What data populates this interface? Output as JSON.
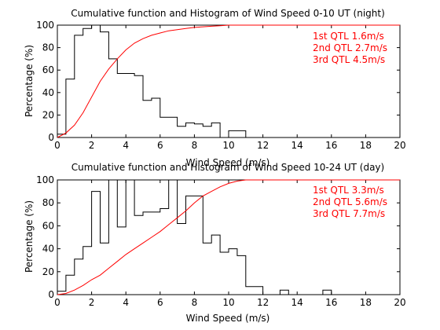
{
  "chart_data": [
    {
      "type": "line",
      "title": "Cumulative function and Histogram of Wind Speed 0-10 UT (night)",
      "xlabel": "Wind Speed (m/s)",
      "ylabel": "Percentage (%)",
      "xlim": [
        0,
        20
      ],
      "ylim": [
        0,
        100
      ],
      "xticks": [
        "0",
        "2",
        "4",
        "6",
        "8",
        "10",
        "12",
        "14",
        "16",
        "18",
        "20"
      ],
      "yticks": [
        "0",
        "20",
        "40",
        "60",
        "80",
        "100"
      ],
      "grid": false,
      "colors": {
        "histogram": "#000000",
        "cumulative": "#ff0000"
      },
      "annotations": [
        "1st QTL 1.6m/s",
        "2nd QTL 2.7m/s",
        "3rd QTL 4.5m/s"
      ],
      "series": [
        {
          "kind": "stairs",
          "x": [
            0,
            0.5,
            1,
            1.5,
            2,
            2.5,
            3,
            3.5,
            4,
            4.5,
            5,
            5.5,
            6,
            6.5,
            7,
            7.5,
            8,
            8.5,
            9,
            9.5,
            10,
            10.5,
            11,
            11.5,
            20
          ],
          "y": [
            3,
            52,
            91,
            97,
            100,
            94,
            70,
            57,
            57,
            55,
            33,
            35,
            18,
            18,
            10,
            13,
            12,
            10,
            13,
            0,
            6,
            6,
            0,
            0,
            0
          ]
        },
        {
          "kind": "line",
          "x": [
            0,
            0.5,
            1,
            1.5,
            2,
            2.5,
            3,
            3.5,
            4,
            4.5,
            5,
            5.5,
            6,
            6.5,
            7,
            7.5,
            8,
            8.5,
            9,
            9.5,
            10,
            10.5,
            11,
            20
          ],
          "y": [
            0,
            4,
            11,
            22,
            36,
            50,
            61,
            70,
            78,
            84,
            88,
            91,
            93,
            95,
            96,
            97,
            98,
            98.5,
            99,
            99.5,
            100,
            100,
            100,
            100
          ]
        }
      ]
    },
    {
      "type": "line",
      "title": "Cumulative function and Histogram of Wind Speed 10-24 UT (day)",
      "xlabel": "Wind Speed (m/s)",
      "ylabel": "Percentage (%)",
      "xlim": [
        0,
        20
      ],
      "ylim": [
        0,
        100
      ],
      "xticks": [
        "0",
        "2",
        "4",
        "6",
        "8",
        "10",
        "12",
        "14",
        "16",
        "18",
        "20"
      ],
      "yticks": [
        "0",
        "20",
        "40",
        "60",
        "80",
        "100"
      ],
      "grid": false,
      "colors": {
        "histogram": "#000000",
        "cumulative": "#ff0000"
      },
      "annotations": [
        "1st QTL 3.3m/s",
        "2nd QTL 5.6m/s",
        "3rd QTL 7.7m/s"
      ],
      "series": [
        {
          "kind": "stairs",
          "x": [
            0,
            0.5,
            1,
            1.5,
            2,
            2.5,
            3,
            3.5,
            4,
            4.5,
            5,
            5.5,
            6,
            6.5,
            7,
            7.5,
            8,
            8.5,
            9,
            9.5,
            10,
            10.5,
            11,
            11.5,
            12,
            12.5,
            13,
            13.5,
            14,
            14.5,
            15,
            15.5,
            16,
            20
          ],
          "y": [
            3,
            17,
            31,
            42,
            90,
            45,
            100,
            59,
            100,
            69,
            72,
            72,
            75,
            100,
            62,
            86,
            86,
            45,
            52,
            37,
            40,
            34,
            7,
            7,
            0,
            0,
            4,
            0,
            0,
            0,
            0,
            4,
            0,
            0
          ]
        },
        {
          "kind": "line",
          "x": [
            0,
            0.5,
            1,
            1.5,
            2,
            2.5,
            3,
            3.5,
            4,
            4.5,
            5,
            5.5,
            6,
            6.5,
            7,
            7.5,
            8,
            8.5,
            9,
            9.5,
            10,
            10.5,
            11,
            11.5,
            12,
            20
          ],
          "y": [
            0,
            1,
            4,
            8,
            13,
            17,
            23,
            29,
            35,
            40,
            45,
            50,
            55,
            61,
            67,
            73,
            80,
            86,
            90,
            94,
            97,
            99,
            100,
            100,
            100,
            100
          ]
        }
      ]
    }
  ]
}
